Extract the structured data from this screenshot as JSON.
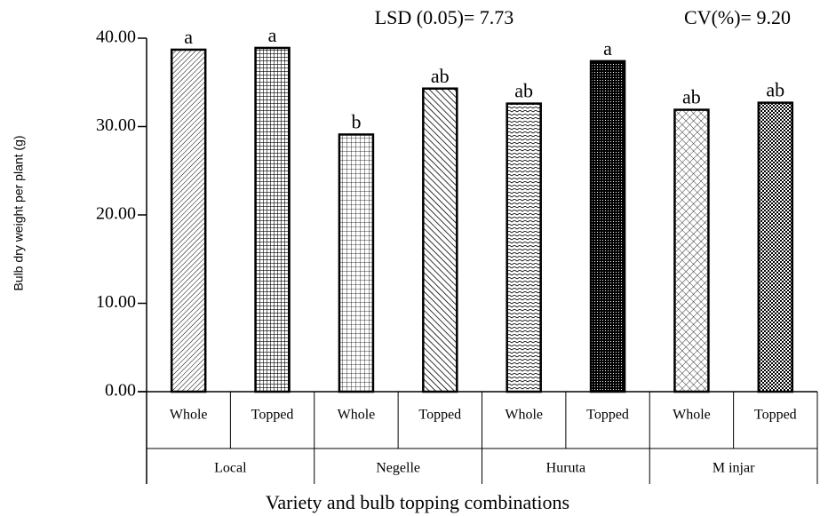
{
  "chart_data": {
    "type": "bar",
    "annotations": [
      "LSD (0.05)= 7.73",
      "CV(%)= 9.20"
    ],
    "y_label": "Bulb dry weight per plant (g)",
    "x_label": "Variety and bulb topping combinations",
    "groups": [
      "Local",
      "Negelle",
      "Huruta",
      "M injar"
    ],
    "categories": [
      "Whole",
      "Topped",
      "Whole",
      "Topped",
      "Whole",
      "Topped",
      "Whole",
      "Topped"
    ],
    "values": [
      38.7,
      38.9,
      29.1,
      34.3,
      32.6,
      37.4,
      31.9,
      32.7
    ],
    "value_labels": [
      "a",
      "a",
      "b",
      "ab",
      "ab",
      "a",
      "ab",
      "ab"
    ],
    "ylim": [
      0,
      40
    ],
    "yticks": [
      {
        "value": 0,
        "label": "0.00"
      },
      {
        "value": 10,
        "label": "10.00"
      },
      {
        "value": 20,
        "label": "20.00"
      },
      {
        "value": 30,
        "label": "30.00"
      },
      {
        "value": 40,
        "label": "40.00"
      }
    ]
  }
}
